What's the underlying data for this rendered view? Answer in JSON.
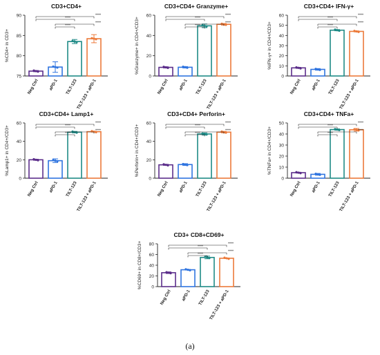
{
  "figure": {
    "panel_label": "(a)"
  },
  "colors": {
    "neg_ctrl": "#5b2d8a",
    "apd1": "#2f74e0",
    "tilt123": "#1e8a86",
    "tilt123_apd1": "#ec7a3a",
    "axis": "#222222"
  },
  "chart_data": [
    {
      "type": "bar",
      "title": "CD3+CD4+",
      "ylabel": "%CD4+ in CD3+",
      "categories": [
        "Neg Ctrl",
        "aPD-1",
        "TILT-123",
        "TILT-123 + aPD-1"
      ],
      "values": [
        76.2,
        77.2,
        83.5,
        84.2
      ],
      "errors": [
        0.15,
        1.3,
        0.5,
        1.0
      ],
      "ylim": [
        75,
        90
      ],
      "yticks": [
        "75",
        "80",
        "85",
        "90"
      ],
      "significance": [
        "****",
        "****",
        "****",
        "****"
      ]
    },
    {
      "type": "bar",
      "title": "CD3+CD4+ Granzyme+",
      "ylabel": "%Granzyme+ in CD4+/CD3+",
      "categories": [
        "Neg Ctrl",
        "aPD-1",
        "TILT-123",
        "TILT-123 + aPD-1"
      ],
      "values": [
        8.5,
        8.6,
        49.5,
        51.0
      ],
      "errors": [
        0.6,
        0.7,
        1.8,
        0.8
      ],
      "ylim": [
        0,
        60
      ],
      "yticks": [
        "0",
        "20",
        "40",
        "60"
      ],
      "significance": [
        "****",
        "****",
        "****",
        "****"
      ]
    },
    {
      "type": "bar",
      "title": "CD3+CD4+ IFN-γ+",
      "ylabel": "%IFN-γ+ in CD4+/CD3+",
      "categories": [
        "Neg Ctrl",
        "aPD-1",
        "TILT-123",
        "TILT-123 + aPD-1"
      ],
      "values": [
        8.0,
        6.5,
        45.2,
        44.0
      ],
      "errors": [
        0.5,
        0.8,
        0.6,
        0.5
      ],
      "ylim": [
        0,
        60
      ],
      "yticks": [
        "0",
        "10",
        "20",
        "30",
        "40",
        "50",
        "60"
      ],
      "significance": [
        "****",
        "****",
        "****",
        "****"
      ]
    },
    {
      "type": "bar",
      "title": "CD3+CD4+ Lamp1+",
      "ylabel": "%Lamp1+ in CD4+/CD3+",
      "categories": [
        "Neg Ctrl",
        "aPD-1",
        "TILT-123",
        "TILT-123 + aPD-1"
      ],
      "values": [
        20.0,
        19.0,
        50.0,
        50.5
      ],
      "errors": [
        0.6,
        2.0,
        0.8,
        0.5
      ],
      "ylim": [
        0,
        60
      ],
      "yticks": [
        "0",
        "20",
        "40",
        "60"
      ],
      "significance": [
        "****",
        "****",
        "****",
        "****"
      ]
    },
    {
      "type": "bar",
      "title": "CD3+CD4+ Perforin+",
      "ylabel": "%Perforin+ in CD4+/CD3+",
      "categories": [
        "Neg Ctrl",
        "aPD-1",
        "TILT-123",
        "TILT-123 + aPD-1"
      ],
      "values": [
        14.5,
        14.8,
        48.0,
        50.0
      ],
      "errors": [
        0.6,
        1.0,
        1.2,
        0.8
      ],
      "ylim": [
        0,
        60
      ],
      "yticks": [
        "0",
        "20",
        "40",
        "60"
      ],
      "significance": [
        "****",
        "****",
        "****",
        "****"
      ]
    },
    {
      "type": "bar",
      "title": "CD3+CD4+ TNFa+",
      "ylabel": "%TNFa+ in CD4+/CD3+",
      "categories": [
        "Neg Ctrl",
        "aPD-1",
        "TILT-123",
        "TILT-123 + aPD-1"
      ],
      "values": [
        5.0,
        3.5,
        44.0,
        43.8
      ],
      "errors": [
        0.4,
        0.8,
        0.6,
        1.2
      ],
      "ylim": [
        0,
        50
      ],
      "yticks": [
        "0",
        "10",
        "20",
        "30",
        "40",
        "50"
      ],
      "significance": [
        "****",
        "****",
        "****",
        "****"
      ]
    },
    {
      "type": "bar",
      "title": "CD3+ CD8+CD69+",
      "ylabel": "%CD69+ in CD8+/CD3+",
      "categories": [
        "Neg Ctrl",
        "aPD-1",
        "TILT-123",
        "TILT-123 + aPD-1"
      ],
      "values": [
        26.0,
        31.5,
        54.5,
        53.0
      ],
      "errors": [
        1.5,
        0.6,
        2.5,
        0.6
      ],
      "ylim": [
        0,
        80
      ],
      "yticks": [
        "0",
        "20",
        "40",
        "60",
        "80"
      ],
      "significance": [
        "****",
        "****",
        "****",
        "****"
      ]
    }
  ]
}
